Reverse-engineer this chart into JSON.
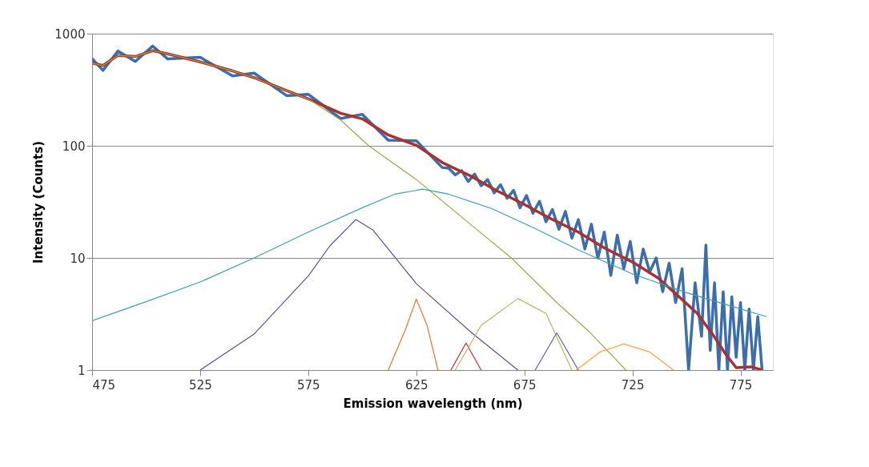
{
  "chart_data": {
    "type": "line",
    "xlabel": "Emission wavelength (nm)",
    "ylabel": "Intensity (Counts)",
    "xlim": [
      475,
      790
    ],
    "xticks": [
      475,
      525,
      575,
      625,
      675,
      725,
      775
    ],
    "ylim": [
      1,
      1000
    ],
    "yticks": [
      1,
      10,
      100,
      1000
    ],
    "log": "y",
    "grid": "y",
    "marker": "none",
    "line_style": "solid",
    "series": [
      {
        "color": "#3b6eaa",
        "x": [
          475,
          480,
          487,
          495,
          503,
          510,
          525,
          540,
          550,
          565,
          575,
          590,
          600,
          612,
          625,
          637,
          640,
          643,
          646,
          649,
          652,
          655,
          658,
          661,
          664,
          667,
          670,
          673,
          676,
          679,
          682,
          685,
          688,
          691,
          694,
          697,
          700,
          703,
          706,
          709,
          712,
          715,
          718,
          721,
          724,
          727,
          730,
          733,
          736,
          739,
          742,
          745,
          748,
          751,
          754,
          757,
          759,
          761,
          763,
          765,
          767,
          769,
          771,
          773,
          775,
          777,
          779,
          781,
          783,
          785
        ],
        "values": [
          600,
          470,
          700,
          565,
          775,
          595,
          615,
          420,
          445,
          280,
          288,
          175,
          191,
          112,
          111,
          64,
          63,
          55,
          60,
          48,
          56,
          44,
          50,
          38,
          45,
          34,
          40,
          28,
          36,
          25,
          32,
          21,
          27,
          18,
          26,
          15,
          22,
          12,
          20,
          10,
          17,
          7,
          16,
          8,
          14,
          6,
          12,
          7.5,
          10,
          5,
          9,
          4,
          8,
          1,
          6,
          2,
          13,
          1.5,
          6,
          1,
          5,
          1,
          4.5,
          1.3,
          4,
          1,
          3.5,
          1,
          3,
          1
        ]
      },
      {
        "color": "#a83232",
        "x": [
          475,
          480,
          487,
          495,
          503,
          510,
          525,
          540,
          550,
          565,
          575,
          590,
          600,
          612,
          625,
          637,
          650,
          662,
          675,
          687,
          700,
          712,
          725,
          737,
          745,
          755,
          762,
          768,
          773,
          780,
          785
        ],
        "values": [
          546,
          520,
          640,
          625,
          705,
          660,
          560,
          465,
          405,
          310,
          262,
          195,
          174,
          125,
          101,
          71,
          54,
          40,
          30,
          22.5,
          17,
          12.3,
          9.2,
          6.6,
          4.8,
          3.2,
          2.1,
          1.4,
          1.05,
          1.07,
          1
        ]
      },
      {
        "color": "#a3a545",
        "x": [
          475,
          480,
          487,
          495,
          503,
          510,
          525,
          540,
          550,
          565,
          575,
          590,
          603,
          625,
          650,
          669,
          690,
          705,
          722
        ],
        "values": [
          546,
          520,
          640,
          625,
          705,
          660,
          560,
          465,
          405,
          310,
          262,
          170,
          100,
          50,
          20,
          10,
          4,
          2.2,
          1
        ]
      },
      {
        "color": "#3aa0b0",
        "x": [
          475,
          500,
          525,
          550,
          575,
          600,
          615,
          628,
          640,
          660,
          680,
          700,
          725,
          750,
          770,
          787
        ],
        "values": [
          2.75,
          4.07,
          6.1,
          10,
          17,
          28,
          37,
          41,
          37,
          27.5,
          18.3,
          11.8,
          7.2,
          4.9,
          3.75,
          3.0
        ]
      },
      {
        "color": "#5b5090",
        "x": [
          525,
          550,
          575,
          585,
          597,
          605,
          625,
          650,
          672
        ],
        "values": [
          1,
          2.1,
          6.9,
          12.8,
          22,
          17.7,
          5.9,
          2.2,
          1
        ]
      },
      {
        "color": "#e07828",
        "x": [
          612,
          620,
          625,
          630,
          635
        ],
        "values": [
          1,
          2.3,
          4.3,
          2.5,
          1
        ]
      },
      {
        "color": "#c03030",
        "x": [
          641,
          648,
          655
        ],
        "values": [
          1,
          1.74,
          1
        ]
      },
      {
        "color": "#c0b060",
        "x": [
          643,
          655,
          672,
          685,
          697
        ],
        "values": [
          1,
          2.5,
          4.35,
          3.2,
          1
        ]
      },
      {
        "color": "#6a5aa8",
        "x": [
          680,
          690,
          700
        ],
        "values": [
          1,
          2.15,
          1
        ]
      },
      {
        "color": "#f5a040",
        "x": [
          699,
          710,
          721,
          733,
          744
        ],
        "values": [
          1,
          1.45,
          1.71,
          1.45,
          1
        ]
      }
    ]
  }
}
